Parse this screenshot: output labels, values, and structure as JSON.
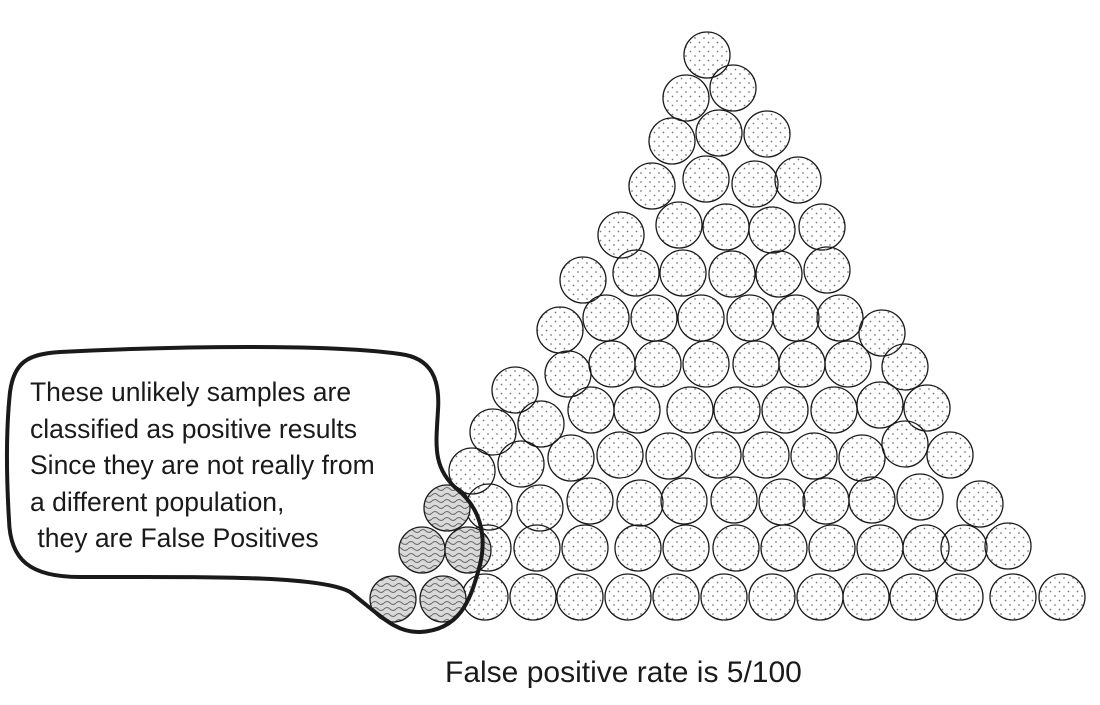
{
  "callout": {
    "lines": [
      "These unlikely samples are",
      "classified as positive results",
      "Since they are not really from",
      "a different population,",
      " they are False Positives"
    ]
  },
  "caption": "False positive rate is 5/100",
  "samples": {
    "total": 100,
    "false_positive_count": 5,
    "normal_pattern": "dotted",
    "false_positive_pattern": "wavy"
  },
  "colors": {
    "ink": "#1a1a1a",
    "dot": "#777777",
    "wavy_fill": "#8a8a8a",
    "background": "#ffffff"
  }
}
